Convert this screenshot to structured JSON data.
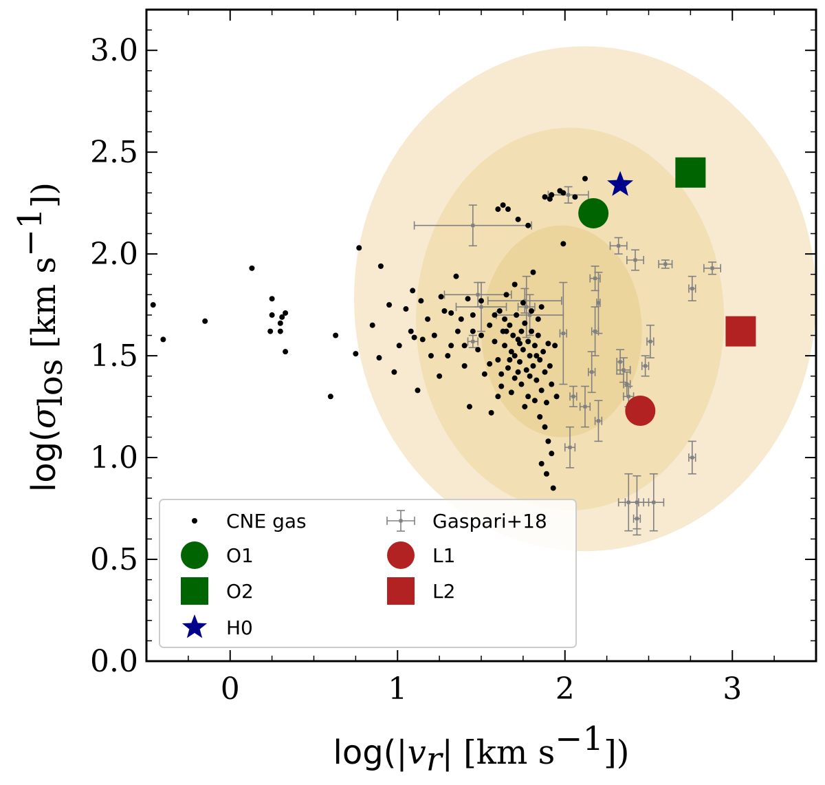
{
  "chart_data": {
    "type": "scatter",
    "xlim": [
      -0.5,
      3.5
    ],
    "ylim": [
      0.0,
      3.2
    ],
    "x_ticks": [
      0,
      1,
      2,
      3
    ],
    "x_tick_labels": [
      "0",
      "1",
      "2",
      "3"
    ],
    "y_ticks": [
      0.0,
      0.5,
      1.0,
      1.5,
      2.0,
      2.5,
      3.0
    ],
    "y_tick_labels": [
      "0.0",
      "0.5",
      "1.0",
      "1.5",
      "2.0",
      "2.5",
      "3.0"
    ],
    "xlabel": {
      "prefix": "log(",
      "var": "|v",
      "sub": "r",
      "mid": "| [km s",
      "sup": "−1",
      "suffix": "])"
    },
    "ylabel": {
      "prefix": "log(",
      "var": "σ",
      "sub": "los",
      "mid": " [km s",
      "sup": "−1",
      "suffix": "])"
    },
    "contours": [
      {
        "level": "outer",
        "cx": 2.12,
        "cy": 1.78,
        "rx": 1.38,
        "ry": 1.24,
        "color": "#f7ead0"
      },
      {
        "level": "middle",
        "cx": 2.03,
        "cy": 1.68,
        "rx": 0.92,
        "ry": 0.94,
        "color": "#f2dfb3"
      },
      {
        "level": "inner",
        "cx": 1.98,
        "cy": 1.62,
        "rx": 0.48,
        "ry": 0.52,
        "color": "#ecd59c"
      }
    ],
    "cne_gas": [
      [
        -0.46,
        1.75
      ],
      [
        -0.4,
        1.58
      ],
      [
        -0.15,
        1.67
      ],
      [
        0.13,
        1.93
      ],
      [
        0.25,
        1.78
      ],
      [
        0.25,
        1.7
      ],
      [
        0.24,
        1.62
      ],
      [
        0.3,
        1.66
      ],
      [
        0.31,
        1.69
      ],
      [
        0.33,
        1.71
      ],
      [
        0.33,
        1.52
      ],
      [
        0.3,
        1.62
      ],
      [
        0.6,
        1.3
      ],
      [
        0.63,
        1.6
      ],
      [
        0.75,
        1.51
      ],
      [
        0.77,
        2.03
      ],
      [
        0.85,
        1.65
      ],
      [
        0.89,
        1.49
      ],
      [
        0.9,
        1.94
      ],
      [
        0.95,
        1.75
      ],
      [
        0.98,
        1.42
      ],
      [
        1.01,
        1.55
      ],
      [
        1.05,
        1.73
      ],
      [
        1.09,
        1.82
      ],
      [
        1.1,
        1.59
      ],
      [
        1.12,
        1.33
      ],
      [
        1.14,
        1.77
      ],
      [
        1.18,
        1.68
      ],
      [
        1.22,
        1.6
      ],
      [
        1.26,
        1.79
      ],
      [
        1.3,
        1.5
      ],
      [
        1.32,
        1.71
      ],
      [
        1.35,
        1.89
      ],
      [
        1.38,
        1.68
      ],
      [
        1.4,
        1.45
      ],
      [
        1.43,
        1.25
      ],
      [
        1.45,
        1.62
      ],
      [
        1.48,
        1.53
      ],
      [
        1.5,
        1.77
      ],
      [
        1.52,
        1.41
      ],
      [
        1.55,
        1.65
      ],
      [
        1.56,
        1.22
      ],
      [
        1.58,
        1.57
      ],
      [
        1.6,
        1.48
      ],
      [
        1.61,
        1.72
      ],
      [
        1.62,
        1.35
      ],
      [
        1.63,
        1.62
      ],
      [
        1.64,
        1.55
      ],
      [
        1.65,
        1.8
      ],
      [
        1.66,
        1.44
      ],
      [
        1.67,
        1.65
      ],
      [
        1.68,
        1.52
      ],
      [
        1.69,
        1.6
      ],
      [
        1.7,
        1.39
      ],
      [
        1.71,
        1.7
      ],
      [
        1.72,
        1.58
      ],
      [
        1.73,
        1.47
      ],
      [
        1.74,
        1.62
      ],
      [
        1.75,
        1.53
      ],
      [
        1.76,
        1.66
      ],
      [
        1.77,
        1.43
      ],
      [
        1.78,
        1.57
      ],
      [
        1.79,
        1.5
      ],
      [
        1.8,
        1.62
      ],
      [
        1.81,
        1.45
      ],
      [
        1.82,
        1.55
      ],
      [
        1.83,
        1.38
      ],
      [
        1.84,
        1.6
      ],
      [
        1.85,
        1.48
      ],
      [
        1.86,
        1.33
      ],
      [
        1.87,
        1.52
      ],
      [
        1.88,
        1.42
      ],
      [
        1.89,
        1.27
      ],
      [
        1.9,
        1.56
      ],
      [
        1.91,
        1.45
      ],
      [
        1.92,
        1.36
      ],
      [
        1.85,
        1.2
      ],
      [
        1.88,
        1.15
      ],
      [
        1.9,
        1.08
      ],
      [
        1.92,
        1.02
      ],
      [
        1.86,
        0.97
      ],
      [
        1.89,
        0.92
      ],
      [
        1.93,
        0.85
      ],
      [
        1.95,
        1.3
      ],
      [
        1.94,
        1.55
      ],
      [
        1.8,
        1.72
      ],
      [
        1.75,
        1.76
      ],
      [
        1.7,
        1.85
      ],
      [
        1.78,
        2.14
      ],
      [
        1.81,
        1.91
      ],
      [
        1.6,
        2.22
      ],
      [
        1.63,
        2.24
      ],
      [
        1.66,
        2.22
      ],
      [
        1.72,
        2.17
      ],
      [
        1.88,
        2.28
      ],
      [
        1.91,
        2.27
      ],
      [
        1.97,
        2.31
      ],
      [
        1.99,
        2.3
      ],
      [
        2.06,
        2.28
      ],
      [
        2.12,
        2.37
      ],
      [
        1.99,
        2.05
      ],
      [
        1.92,
        2.29
      ],
      [
        1.6,
        1.3
      ],
      [
        1.65,
        1.62
      ],
      [
        1.7,
        1.5
      ],
      [
        1.74,
        1.36
      ],
      [
        1.78,
        1.3
      ],
      [
        1.82,
        1.28
      ],
      [
        1.55,
        1.46
      ],
      [
        1.5,
        1.6
      ],
      [
        1.45,
        1.7
      ],
      [
        1.4,
        1.55
      ],
      [
        1.36,
        1.62
      ],
      [
        1.28,
        1.72
      ],
      [
        1.2,
        1.5
      ],
      [
        1.25,
        1.4
      ],
      [
        1.15,
        1.58
      ],
      [
        1.08,
        1.62
      ],
      [
        1.32,
        1.55
      ],
      [
        1.42,
        1.78
      ],
      [
        1.58,
        1.7
      ],
      [
        1.62,
        1.41
      ],
      [
        1.68,
        1.32
      ],
      [
        1.72,
        1.42
      ],
      [
        1.76,
        1.25
      ],
      [
        1.84,
        1.68
      ],
      [
        1.86,
        1.74
      ],
      [
        1.83,
        1.5
      ],
      [
        1.79,
        1.4
      ],
      [
        1.73,
        1.56
      ],
      [
        1.67,
        1.48
      ],
      [
        1.64,
        1.68
      ]
    ],
    "gaspari18": [
      {
        "x": 1.45,
        "y": 2.14,
        "xerr": 0.35,
        "yerr": 0.1
      },
      {
        "x": 2.02,
        "y": 2.29,
        "xerr": 0.12,
        "yerr": 0.04
      },
      {
        "x": 2.32,
        "y": 2.04,
        "xerr": 0.05,
        "yerr": 0.04
      },
      {
        "x": 2.42,
        "y": 1.97,
        "xerr": 0.05,
        "yerr": 0.05
      },
      {
        "x": 2.6,
        "y": 1.95,
        "xerr": 0.04,
        "yerr": 0.02
      },
      {
        "x": 2.88,
        "y": 1.93,
        "xerr": 0.05,
        "yerr": 0.03
      },
      {
        "x": 2.76,
        "y": 1.83,
        "xerr": 0.02,
        "yerr": 0.06
      },
      {
        "x": 1.48,
        "y": 1.8,
        "xerr": 0.2,
        "yerr": 0.06
      },
      {
        "x": 1.5,
        "y": 1.74,
        "xerr": 0.15,
        "yerr": 0.12
      },
      {
        "x": 1.76,
        "y": 1.77,
        "xerr": 0.22,
        "yerr": 0.06
      },
      {
        "x": 1.77,
        "y": 1.74,
        "xerr": 0.05,
        "yerr": 0.15
      },
      {
        "x": 1.79,
        "y": 1.7,
        "xerr": 0.2,
        "yerr": 0.1
      },
      {
        "x": 2.18,
        "y": 1.88,
        "xerr": 0.03,
        "yerr": 0.06
      },
      {
        "x": 2.2,
        "y": 1.76,
        "xerr": 0.01,
        "yerr": 0.15
      },
      {
        "x": 1.99,
        "y": 1.61,
        "xerr": 0.02,
        "yerr": 0.25
      },
      {
        "x": 2.18,
        "y": 1.62,
        "xerr": 0.02,
        "yerr": 0.12
      },
      {
        "x": 2.16,
        "y": 1.42,
        "xerr": 0.02,
        "yerr": 0.1
      },
      {
        "x": 2.48,
        "y": 1.45,
        "xerr": 0.02,
        "yerr": 0.05
      },
      {
        "x": 2.51,
        "y": 1.57,
        "xerr": 0.02,
        "yerr": 0.08
      },
      {
        "x": 2.33,
        "y": 1.47,
        "xerr": 0.02,
        "yerr": 0.06
      },
      {
        "x": 2.35,
        "y": 1.43,
        "xerr": 0.04,
        "yerr": 0.06
      },
      {
        "x": 2.37,
        "y": 1.36,
        "xerr": 0.02,
        "yerr": 0.06
      },
      {
        "x": 2.38,
        "y": 1.3,
        "xerr": 0.03,
        "yerr": 0.05
      },
      {
        "x": 2.05,
        "y": 1.3,
        "xerr": 0.02,
        "yerr": 0.05
      },
      {
        "x": 2.12,
        "y": 1.25,
        "xerr": 0.03,
        "yerr": 0.1
      },
      {
        "x": 2.2,
        "y": 1.18,
        "xerr": 0.02,
        "yerr": 0.1
      },
      {
        "x": 2.03,
        "y": 1.05,
        "xerr": 0.03,
        "yerr": 0.1
      },
      {
        "x": 2.76,
        "y": 1.0,
        "xerr": 0.02,
        "yerr": 0.08
      },
      {
        "x": 2.38,
        "y": 0.78,
        "xerr": 0.06,
        "yerr": 0.14
      },
      {
        "x": 2.43,
        "y": 0.78,
        "xerr": 0.07,
        "yerr": 0.13
      },
      {
        "x": 2.53,
        "y": 0.78,
        "xerr": 0.06,
        "yerr": 0.14
      },
      {
        "x": 2.43,
        "y": 0.7,
        "xerr": 0.02,
        "yerr": 0.08
      },
      {
        "x": 1.45,
        "y": 1.57,
        "xerr": 0.03,
        "yerr": 0.03
      }
    ],
    "special_points": [
      {
        "name": "O1",
        "marker": "circle",
        "color": "#006400",
        "x": 2.17,
        "y": 2.2
      },
      {
        "name": "O2",
        "marker": "square",
        "color": "#006400",
        "x": 2.75,
        "y": 2.4
      },
      {
        "name": "H0",
        "marker": "star",
        "color": "#00008b",
        "x": 2.33,
        "y": 2.34
      },
      {
        "name": "L1",
        "marker": "circle",
        "color": "#b22222",
        "x": 2.45,
        "y": 1.23
      },
      {
        "name": "L2",
        "marker": "square",
        "color": "#b22222",
        "x": 3.05,
        "y": 1.62
      }
    ],
    "legend": {
      "placement": "lower-left",
      "entries": [
        {
          "label": "CNE gas",
          "marker": "dot",
          "color": "#000000"
        },
        {
          "label": "Gaspari+18",
          "marker": "errorbar",
          "color": "#808080"
        },
        {
          "label": "O1",
          "marker": "circle",
          "color": "#006400"
        },
        {
          "label": "L1",
          "marker": "circle",
          "color": "#b22222"
        },
        {
          "label": "O2",
          "marker": "square",
          "color": "#006400"
        },
        {
          "label": "L2",
          "marker": "square",
          "color": "#b22222"
        },
        {
          "label": "H0",
          "marker": "star",
          "color": "#00008b"
        }
      ]
    }
  }
}
